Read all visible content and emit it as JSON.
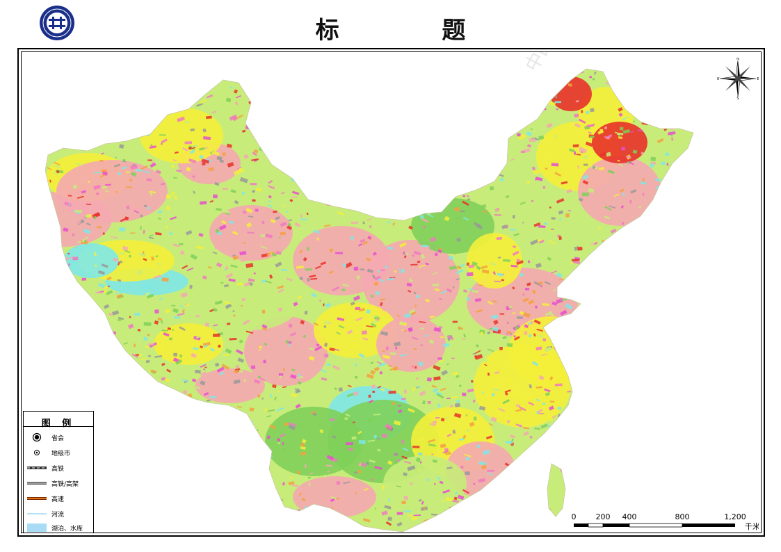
{
  "page": {
    "title": "标    题",
    "watermark": "中国地"
  },
  "legend": {
    "title": "图 例",
    "items": [
      {
        "label": "省会",
        "symbol": "capital-icon"
      },
      {
        "label": "地级市",
        "symbol": "city-icon"
      },
      {
        "label": "高铁",
        "symbol": "high-speed-rail-line"
      },
      {
        "label": "高铁/高架",
        "symbol": "rail-elevated-line"
      },
      {
        "label": "高速",
        "symbol": "expressway-line"
      },
      {
        "label": "河流",
        "symbol": "river-line"
      },
      {
        "label": "湖泊、水库",
        "symbol": "lake-patch"
      }
    ]
  },
  "compass": {
    "n": "N",
    "s": "S",
    "e": "E",
    "w": "W"
  },
  "scale": {
    "ticks": [
      "0",
      "200",
      "400",
      "800",
      "1,200"
    ],
    "unit": "千米"
  },
  "colors": {
    "yellow": "#f4f03a",
    "pink": "#f5a9b0",
    "red": "#e8322a",
    "cyan": "#7ee8e8",
    "lightgreen": "#c8ec7a",
    "green": "#7fd05a",
    "magenta": "#e84fd0",
    "orange": "#f6a040",
    "lake": "#a8dcf5"
  }
}
